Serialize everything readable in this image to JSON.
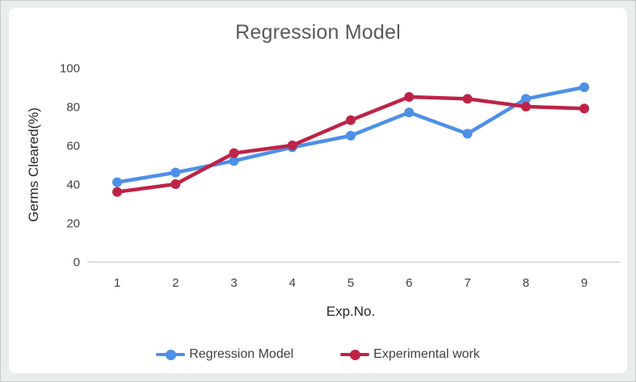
{
  "chart_data": {
    "type": "line",
    "title": "Regression Model",
    "xlabel": "Exp.No.",
    "ylabel": "Germs Cleared(%)",
    "x": [
      1,
      2,
      3,
      4,
      5,
      6,
      7,
      8,
      9
    ],
    "series": [
      {
        "name": "Regression Model",
        "color": "#4e8fe8",
        "values": [
          41,
          46,
          52,
          59,
          65,
          77,
          66,
          84,
          90
        ]
      },
      {
        "name": "Experimental work",
        "color": "#be2346",
        "values": [
          36,
          40,
          56,
          60,
          73,
          85,
          84,
          80,
          79
        ]
      }
    ],
    "ylim": [
      0,
      100
    ],
    "yticks": [
      0,
      20,
      40,
      60,
      80,
      100
    ],
    "grid": false,
    "legend_position": "bottom",
    "marker": "circle"
  },
  "colors": {
    "page_background": "#e9eeec",
    "plot_background": "#ffffff",
    "axis_line": "#d6d6d6",
    "title_text": "#595959",
    "tick_text": "#404040"
  }
}
